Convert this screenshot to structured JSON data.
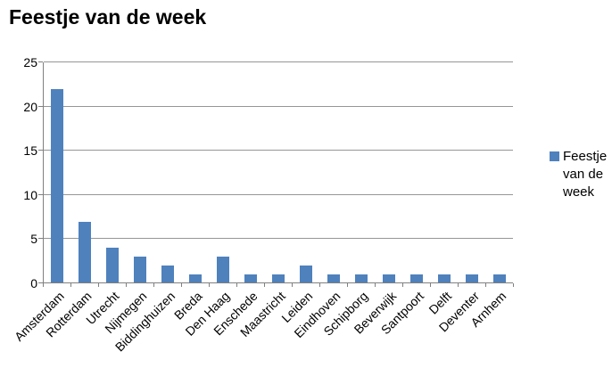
{
  "chart_data": {
    "type": "bar",
    "title": "Feestje van de week",
    "categories": [
      "Amsterdam",
      "Rotterdam",
      "Utrecht",
      "Nijmegen",
      "Biddinghuizen",
      "Breda",
      "Den Haag",
      "Enschede",
      "Maastricht",
      "Leiden",
      "Eindhoven",
      "Schipborg",
      "Beverwijk",
      "Santpoort",
      "Delft",
      "Deventer",
      "Arnhem"
    ],
    "series": [
      {
        "name": "Feestje van de week",
        "values": [
          22,
          7,
          4,
          3,
          2,
          1,
          3,
          1,
          1,
          2,
          1,
          1,
          1,
          1,
          1,
          1,
          1
        ]
      }
    ],
    "xlabel": "",
    "ylabel": "",
    "ylim": [
      0,
      25
    ],
    "yticks": [
      0,
      5,
      10,
      15,
      20,
      25
    ],
    "grid": true,
    "legend_position": "right",
    "legend_label": "Feestje van de week",
    "colors": {
      "bar": "#4F81BD",
      "gridline": "#969696",
      "axis": "#808080",
      "text": "#000000",
      "background": "#FFFFFF"
    }
  }
}
